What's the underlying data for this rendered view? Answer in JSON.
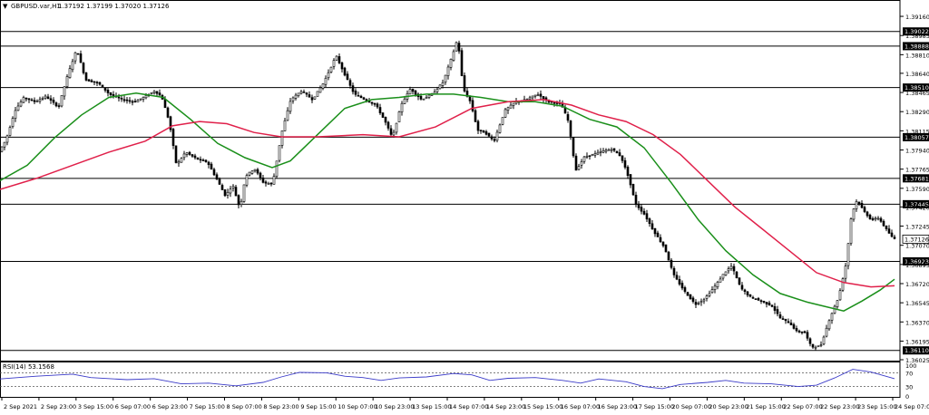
{
  "header": {
    "symbol_label": "GBPUSD.var,H1",
    "ohlc_text": "1.37192 1.37199 1.37020 1.37126"
  },
  "indicator": {
    "label": "RSI(14) 53.1568",
    "levels": [
      "100",
      "70",
      "30",
      "0"
    ]
  },
  "colors": {
    "background": "#ffffff",
    "candle": "#000000",
    "ma_fast": "#1a8f1a",
    "ma_slow": "#e0204a",
    "rsi": "#3a3ac8",
    "level_line": "#000000",
    "price_box": "#000000"
  },
  "chart_data": [
    {
      "type": "candlestick",
      "symbol": "GBPUSD.var",
      "timeframe": "H1",
      "y_ticks": [
        "1.39160",
        "1.38985",
        "1.38810",
        "1.38640",
        "1.38465",
        "1.38290",
        "1.38115",
        "1.37940",
        "1.37765",
        "1.37590",
        "1.37420",
        "1.37245",
        "1.37070",
        "1.36895",
        "1.36720",
        "1.36545",
        "1.36370",
        "1.36195",
        "1.36025"
      ],
      "ylim": [
        1.36025,
        1.3921
      ],
      "x_ticks": [
        "2 Sep 2021",
        "2 Sep 23:00",
        "3 Sep 15:00",
        "6 Sep 07:00",
        "6 Sep 23:00",
        "7 Sep 15:00",
        "8 Sep 07:00",
        "8 Sep 23:00",
        "9 Sep 15:00",
        "10 Sep 07:00",
        "10 Sep 23:00",
        "13 Sep 15:00",
        "14 Sep 07:00",
        "14 Sep 23:00",
        "15 Sep 15:00",
        "16 Sep 07:00",
        "16 Sep 23:00",
        "17 Sep 15:00",
        "20 Sep 07:00",
        "20 Sep 23:00",
        "21 Sep 15:00",
        "22 Sep 07:00",
        "22 Sep 23:00",
        "23 Sep 15:00",
        "24 Sep 07:00"
      ],
      "horizontal_levels": [
        "1.39022",
        "1.38888",
        "1.38510",
        "1.38057",
        "1.37681",
        "1.37445",
        "1.36923",
        "1.36110"
      ],
      "current_price": "1.37126",
      "price_path": [
        [
          0,
          1.3792
        ],
        [
          8,
          1.3803
        ],
        [
          18,
          1.383
        ],
        [
          28,
          1.3842
        ],
        [
          40,
          1.3838
        ],
        [
          52,
          1.3843
        ],
        [
          66,
          1.3833
        ],
        [
          76,
          1.3862
        ],
        [
          86,
          1.3886
        ],
        [
          96,
          1.3858
        ],
        [
          110,
          1.3855
        ],
        [
          122,
          1.3845
        ],
        [
          136,
          1.384
        ],
        [
          150,
          1.3838
        ],
        [
          162,
          1.3843
        ],
        [
          172,
          1.3848
        ],
        [
          180,
          1.3842
        ],
        [
          188,
          1.382
        ],
        [
          196,
          1.378
        ],
        [
          206,
          1.3792
        ],
        [
          218,
          1.3786
        ],
        [
          230,
          1.3783
        ],
        [
          240,
          1.3768
        ],
        [
          250,
          1.3752
        ],
        [
          258,
          1.3762
        ],
        [
          266,
          1.374
        ],
        [
          272,
          1.377
        ],
        [
          282,
          1.3777
        ],
        [
          292,
          1.3764
        ],
        [
          302,
          1.3763
        ],
        [
          312,
          1.381
        ],
        [
          322,
          1.384
        ],
        [
          334,
          1.3848
        ],
        [
          346,
          1.384
        ],
        [
          358,
          1.3855
        ],
        [
          372,
          1.388
        ],
        [
          382,
          1.3862
        ],
        [
          392,
          1.3845
        ],
        [
          404,
          1.384
        ],
        [
          416,
          1.3835
        ],
        [
          426,
          1.382
        ],
        [
          434,
          1.3805
        ],
        [
          444,
          1.3836
        ],
        [
          454,
          1.385
        ],
        [
          466,
          1.384
        ],
        [
          478,
          1.3845
        ],
        [
          490,
          1.3856
        ],
        [
          500,
          1.388
        ],
        [
          506,
          1.3896
        ],
        [
          512,
          1.385
        ],
        [
          520,
          1.3838
        ],
        [
          528,
          1.3812
        ],
        [
          536,
          1.381
        ],
        [
          546,
          1.3802
        ],
        [
          558,
          1.383
        ],
        [
          570,
          1.3838
        ],
        [
          582,
          1.384
        ],
        [
          594,
          1.3845
        ],
        [
          606,
          1.3838
        ],
        [
          620,
          1.3836
        ],
        [
          628,
          1.382
        ],
        [
          636,
          1.3775
        ],
        [
          646,
          1.3788
        ],
        [
          656,
          1.379
        ],
        [
          666,
          1.3793
        ],
        [
          676,
          1.3795
        ],
        [
          686,
          1.3788
        ],
        [
          694,
          1.377
        ],
        [
          702,
          1.3745
        ],
        [
          712,
          1.3735
        ],
        [
          722,
          1.372
        ],
        [
          734,
          1.3705
        ],
        [
          744,
          1.368
        ],
        [
          756,
          1.3665
        ],
        [
          768,
          1.3653
        ],
        [
          778,
          1.3658
        ],
        [
          790,
          1.367
        ],
        [
          800,
          1.3682
        ],
        [
          808,
          1.3688
        ],
        [
          818,
          1.3668
        ],
        [
          828,
          1.366
        ],
        [
          840,
          1.3656
        ],
        [
          852,
          1.3652
        ],
        [
          862,
          1.364
        ],
        [
          872,
          1.3636
        ],
        [
          880,
          1.3628
        ],
        [
          888,
          1.3628
        ],
        [
          896,
          1.3614
        ],
        [
          906,
          1.3615
        ],
        [
          916,
          1.364
        ],
        [
          926,
          1.366
        ],
        [
          934,
          1.369
        ],
        [
          940,
          1.3735
        ],
        [
          946,
          1.3748
        ],
        [
          954,
          1.3738
        ],
        [
          962,
          1.373
        ],
        [
          970,
          1.3732
        ],
        [
          978,
          1.3722
        ],
        [
          986,
          1.3713
        ]
      ],
      "series": [
        {
          "name": "",
          "kind": "moving-average",
          "color": "#1a8f1a",
          "points": [
            [
              0,
              1.3766
            ],
            [
              30,
              1.378
            ],
            [
              60,
              1.3805
            ],
            [
              90,
              1.3826
            ],
            [
              120,
              1.3842
            ],
            [
              150,
              1.3846
            ],
            [
              180,
              1.3842
            ],
            [
              210,
              1.3822
            ],
            [
              240,
              1.38
            ],
            [
              270,
              1.3787
            ],
            [
              300,
              1.3778
            ],
            [
              320,
              1.3784
            ],
            [
              350,
              1.3808
            ],
            [
              380,
              1.3832
            ],
            [
              410,
              1.384
            ],
            [
              440,
              1.3842
            ],
            [
              470,
              1.3845
            ],
            [
              500,
              1.3845
            ],
            [
              530,
              1.3842
            ],
            [
              560,
              1.3838
            ],
            [
              590,
              1.3838
            ],
            [
              620,
              1.3834
            ],
            [
              650,
              1.3822
            ],
            [
              680,
              1.3815
            ],
            [
              710,
              1.3796
            ],
            [
              740,
              1.3764
            ],
            [
              770,
              1.373
            ],
            [
              800,
              1.3702
            ],
            [
              830,
              1.368
            ],
            [
              860,
              1.3663
            ],
            [
              890,
              1.3655
            ],
            [
              910,
              1.3651
            ],
            [
              930,
              1.3647
            ],
            [
              950,
              1.3656
            ],
            [
              970,
              1.3666
            ],
            [
              986,
              1.3676
            ]
          ]
        },
        {
          "name": "",
          "kind": "moving-average",
          "color": "#e0204a",
          "points": [
            [
              0,
              1.3758
            ],
            [
              40,
              1.3768
            ],
            [
              80,
              1.378
            ],
            [
              120,
              1.3792
            ],
            [
              160,
              1.3802
            ],
            [
              190,
              1.3816
            ],
            [
              220,
              1.382
            ],
            [
              250,
              1.3818
            ],
            [
              280,
              1.381
            ],
            [
              310,
              1.3806
            ],
            [
              350,
              1.3806
            ],
            [
              400,
              1.3808
            ],
            [
              440,
              1.3806
            ],
            [
              480,
              1.3815
            ],
            [
              520,
              1.3832
            ],
            [
              560,
              1.3838
            ],
            [
              600,
              1.384
            ],
            [
              630,
              1.3835
            ],
            [
              660,
              1.3826
            ],
            [
              690,
              1.382
            ],
            [
              720,
              1.3808
            ],
            [
              750,
              1.379
            ],
            [
              780,
              1.3766
            ],
            [
              810,
              1.3742
            ],
            [
              840,
              1.3722
            ],
            [
              870,
              1.3702
            ],
            [
              900,
              1.3682
            ],
            [
              930,
              1.3673
            ],
            [
              960,
              1.3669
            ],
            [
              986,
              1.367
            ]
          ]
        }
      ]
    },
    {
      "type": "line",
      "title": "RSI(14) 53.1568",
      "y_ticks": [
        "100",
        "70",
        "30",
        "0"
      ],
      "ylim": [
        0,
        100
      ],
      "reference_lines": [
        70,
        30
      ],
      "series": [
        {
          "name": "",
          "color": "#3a3ac8",
          "points": [
            [
              0,
              52
            ],
            [
              40,
              60
            ],
            [
              80,
              66
            ],
            [
              100,
              56
            ],
            [
              140,
              50
            ],
            [
              170,
              53
            ],
            [
              200,
              38
            ],
            [
              230,
              40
            ],
            [
              260,
              32
            ],
            [
              290,
              42
            ],
            [
              310,
              58
            ],
            [
              330,
              71
            ],
            [
              360,
              70
            ],
            [
              380,
              60
            ],
            [
              400,
              56
            ],
            [
              420,
              48
            ],
            [
              440,
              55
            ],
            [
              470,
              58
            ],
            [
              500,
              68
            ],
            [
              520,
              64
            ],
            [
              540,
              48
            ],
            [
              560,
              54
            ],
            [
              590,
              56
            ],
            [
              620,
              48
            ],
            [
              640,
              40
            ],
            [
              660,
              52
            ],
            [
              690,
              44
            ],
            [
              710,
              30
            ],
            [
              730,
              24
            ],
            [
              750,
              36
            ],
            [
              780,
              42
            ],
            [
              800,
              48
            ],
            [
              820,
              40
            ],
            [
              850,
              38
            ],
            [
              880,
              30
            ],
            [
              900,
              34
            ],
            [
              920,
              55
            ],
            [
              940,
              80
            ],
            [
              960,
              72
            ],
            [
              986,
              53
            ]
          ]
        }
      ]
    }
  ]
}
